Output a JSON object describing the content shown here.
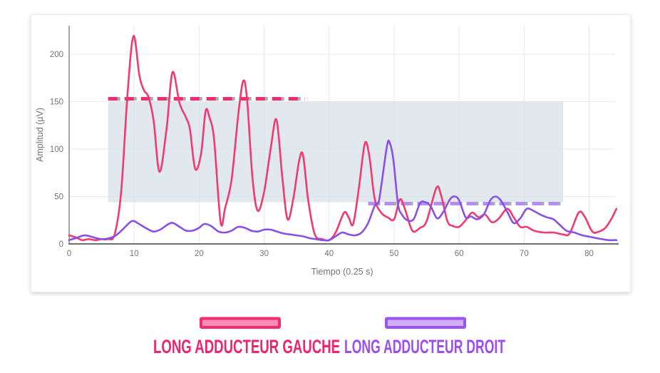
{
  "chart_data": {
    "type": "line",
    "title": "",
    "xlabel": "Tiempo (0.25 s)",
    "ylabel": "Amplitud (µV)",
    "xlim": [
      0,
      84
    ],
    "ylim": [
      0,
      230
    ],
    "x_ticks": [
      0,
      10,
      20,
      30,
      40,
      50,
      60,
      70,
      80
    ],
    "y_ticks": [
      0,
      50,
      100,
      150,
      200
    ],
    "grid": true,
    "legend_position": "bottom",
    "colors": {
      "grid": "#e9e9e9",
      "axis": "#8a8a8a",
      "tick_text": "#757575"
    },
    "shaded_region": {
      "x1": 6,
      "x2": 76,
      "y1": 44,
      "y2": 150,
      "color": "#d7e0e8",
      "opacity": 0.75
    },
    "threshold_lines": [
      {
        "name": "max-gauche",
        "y": 153,
        "x1": 6,
        "x2": 36.3,
        "color": "#f02d6e",
        "shadow": "#a7adb3"
      },
      {
        "name": "max-droit",
        "y": 42.5,
        "x1": 46,
        "x2": 76,
        "color": "#b48ff2",
        "shadow": "#a7adb3"
      }
    ],
    "series": [
      {
        "name": "LONG ADDUCTEUR GAUCHE",
        "color": "#f13a70",
        "points": [
          [
            0,
            9
          ],
          [
            1,
            7
          ],
          [
            2,
            4
          ],
          [
            3,
            5
          ],
          [
            4,
            4
          ],
          [
            5,
            5
          ],
          [
            6,
            5
          ],
          [
            7,
            10
          ],
          [
            8,
            55
          ],
          [
            9,
            160
          ],
          [
            9.9,
            219
          ],
          [
            10.8,
            178
          ],
          [
            11.5,
            162
          ],
          [
            12.2,
            155
          ],
          [
            13,
            130
          ],
          [
            13.9,
            76
          ],
          [
            15,
            122
          ],
          [
            15.9,
            181
          ],
          [
            17,
            148
          ],
          [
            18,
            133
          ],
          [
            18.6,
            120
          ],
          [
            19.4,
            79
          ],
          [
            20.3,
            95
          ],
          [
            21,
            140
          ],
          [
            21.6,
            133
          ],
          [
            22.3,
            110
          ],
          [
            23.3,
            23
          ],
          [
            24,
            38
          ],
          [
            25,
            68
          ],
          [
            26,
            135
          ],
          [
            26.8,
            172
          ],
          [
            27.4,
            150
          ],
          [
            28.2,
            70
          ],
          [
            29,
            35
          ],
          [
            30,
            55
          ],
          [
            31,
            100
          ],
          [
            31.9,
            131
          ],
          [
            32.8,
            70
          ],
          [
            33.6,
            26
          ],
          [
            34.5,
            48
          ],
          [
            35.4,
            88
          ],
          [
            36,
            93
          ],
          [
            36.8,
            45
          ],
          [
            37.8,
            10
          ],
          [
            39,
            5
          ],
          [
            40,
            4
          ],
          [
            41,
            12
          ],
          [
            42.3,
            33
          ],
          [
            43,
            28
          ],
          [
            43.7,
            21
          ],
          [
            44.6,
            60
          ],
          [
            45.5,
            106
          ],
          [
            46.2,
            92
          ],
          [
            47,
            48
          ],
          [
            48,
            33
          ],
          [
            49,
            28
          ],
          [
            50,
            26
          ],
          [
            50.9,
            47
          ],
          [
            51.7,
            36
          ],
          [
            52.8,
            14
          ],
          [
            54,
            17
          ],
          [
            55,
            24
          ],
          [
            56.5,
            59
          ],
          [
            57.2,
            52
          ],
          [
            58.2,
            24
          ],
          [
            59,
            19
          ],
          [
            60,
            18
          ],
          [
            61,
            25
          ],
          [
            62,
            33
          ],
          [
            63,
            28
          ],
          [
            64,
            31
          ],
          [
            65,
            23
          ],
          [
            66,
            26
          ],
          [
            67.4,
            37
          ],
          [
            68.4,
            28
          ],
          [
            69.4,
            18
          ],
          [
            70.4,
            18
          ],
          [
            71.5,
            14
          ],
          [
            73,
            12
          ],
          [
            74.5,
            12
          ],
          [
            76,
            10
          ],
          [
            77,
            11
          ],
          [
            78.4,
            33
          ],
          [
            79.3,
            29
          ],
          [
            80.5,
            13
          ],
          [
            81.5,
            13
          ],
          [
            82.5,
            17
          ],
          [
            83.4,
            26
          ],
          [
            84.2,
            37
          ]
        ]
      },
      {
        "name": "LONG ADDUCTEUR DROIT",
        "color": "#8950e8",
        "points": [
          [
            0,
            4
          ],
          [
            1,
            6
          ],
          [
            2.3,
            9
          ],
          [
            3.2,
            8
          ],
          [
            4.2,
            6
          ],
          [
            5.2,
            5
          ],
          [
            6.2,
            6
          ],
          [
            7.2,
            9
          ],
          [
            8.2,
            15
          ],
          [
            9.4,
            23
          ],
          [
            10,
            24
          ],
          [
            11,
            20
          ],
          [
            12,
            16
          ],
          [
            13,
            13
          ],
          [
            14,
            15
          ],
          [
            15.3,
            21
          ],
          [
            16,
            22
          ],
          [
            17,
            18
          ],
          [
            18,
            14
          ],
          [
            19,
            14
          ],
          [
            20,
            17
          ],
          [
            20.8,
            21
          ],
          [
            21.8,
            19
          ],
          [
            23,
            13
          ],
          [
            24,
            12
          ],
          [
            25,
            14
          ],
          [
            26,
            18
          ],
          [
            27,
            17
          ],
          [
            28,
            14
          ],
          [
            29,
            13
          ],
          [
            30,
            15
          ],
          [
            31,
            15
          ],
          [
            32,
            13
          ],
          [
            33,
            11
          ],
          [
            34,
            10
          ],
          [
            35,
            9
          ],
          [
            36,
            8
          ],
          [
            37,
            6
          ],
          [
            38,
            5
          ],
          [
            39,
            4
          ],
          [
            40,
            4
          ],
          [
            41,
            8
          ],
          [
            42,
            12
          ],
          [
            43,
            10
          ],
          [
            44,
            9
          ],
          [
            45,
            12
          ],
          [
            46,
            22
          ],
          [
            47,
            40
          ],
          [
            47.6,
            44
          ],
          [
            48,
            60
          ],
          [
            48.9,
            103
          ],
          [
            49.3,
            107
          ],
          [
            49.9,
            88
          ],
          [
            50.6,
            42
          ],
          [
            51.2,
            31
          ],
          [
            52,
            25
          ],
          [
            53,
            26
          ],
          [
            54,
            43
          ],
          [
            54.8,
            44
          ],
          [
            55.6,
            40
          ],
          [
            56.6,
            27
          ],
          [
            57.5,
            33
          ],
          [
            58.6,
            47
          ],
          [
            59.3,
            50
          ],
          [
            60,
            46
          ],
          [
            61,
            28
          ],
          [
            61.8,
            29
          ],
          [
            62.8,
            26
          ],
          [
            63.8,
            31
          ],
          [
            64.8,
            46
          ],
          [
            65.6,
            50
          ],
          [
            66.4,
            46
          ],
          [
            67.4,
            34
          ],
          [
            68.4,
            22
          ],
          [
            69.4,
            27
          ],
          [
            70.4,
            37
          ],
          [
            71.4,
            35
          ],
          [
            72.5,
            31
          ],
          [
            73.5,
            28
          ],
          [
            74.5,
            26
          ],
          [
            75.5,
            20
          ],
          [
            76.5,
            14
          ],
          [
            77.7,
            12
          ],
          [
            79,
            9
          ],
          [
            80.5,
            7
          ],
          [
            82,
            5
          ],
          [
            83,
            4
          ],
          [
            84.2,
            4
          ]
        ]
      }
    ]
  },
  "legend": {
    "items": [
      {
        "label": "LONG ADDUCTEUR GAUCHE",
        "text_color": "#f0246e",
        "swatch_fill": "#f98cba",
        "swatch_border": "#f02e6e"
      },
      {
        "label": "LONG ADDUCTEUR DROIT",
        "text_color": "#9b4df0",
        "swatch_fill": "#d2adf7",
        "swatch_border": "#9a55ef"
      }
    ]
  }
}
